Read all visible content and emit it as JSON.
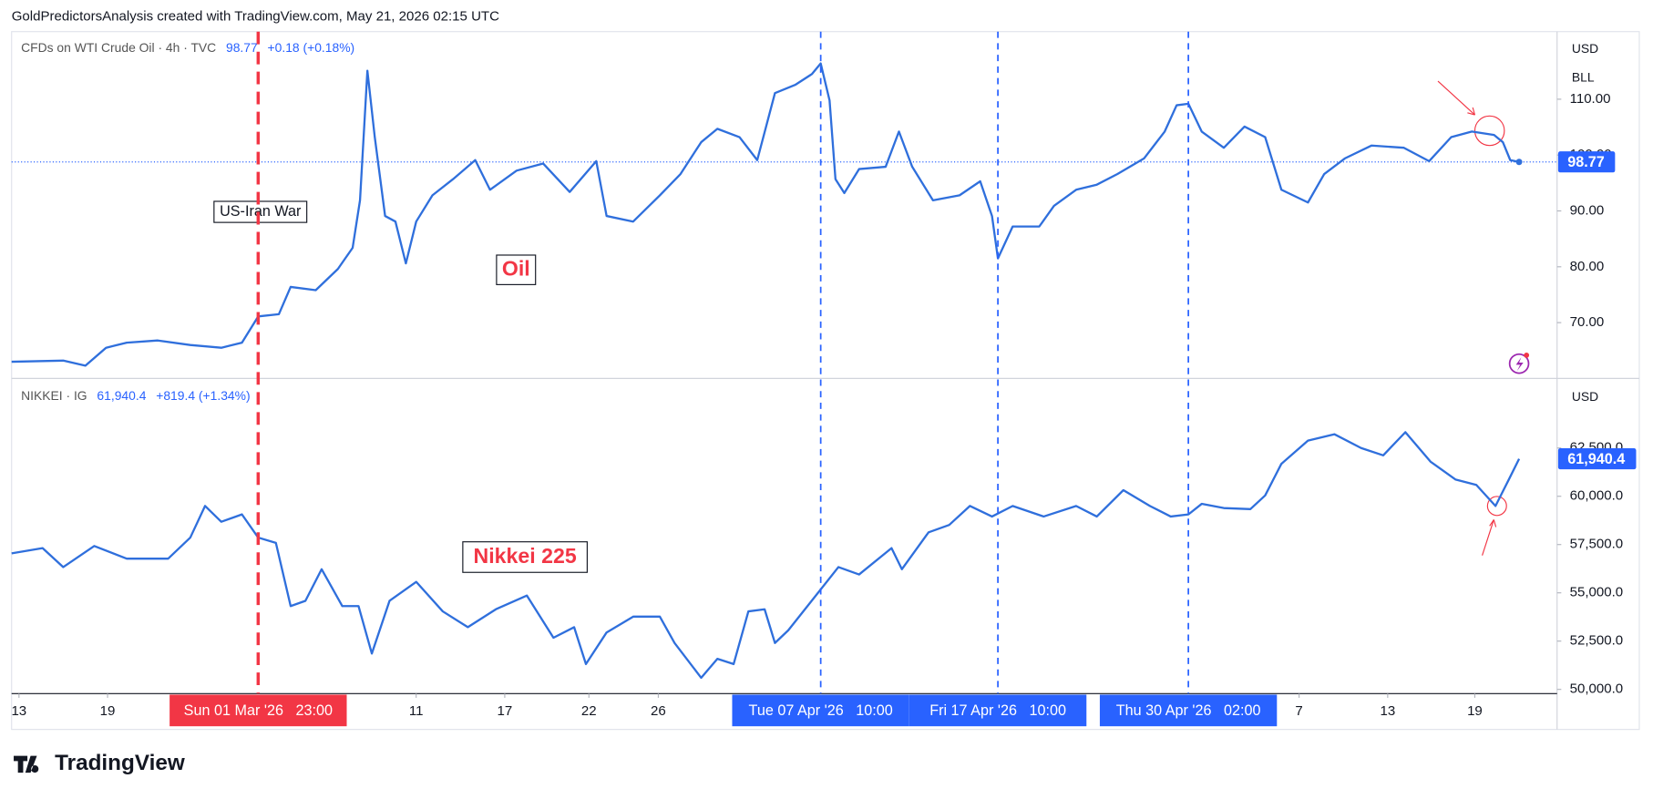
{
  "header": {
    "attribution": "GoldPredictorsAnalysis created with TradingView.com, May 21, 2026 02:15 UTC",
    "logo": "TradingView"
  },
  "chart_data": [
    {
      "type": "line",
      "title": "CFDs on WTI Crude Oil · 4h · TVC",
      "last_value": 98.77,
      "change": "+0.18 (+0.18%)",
      "currency": [
        "USD",
        "BLL"
      ],
      "annotations": [
        "US-Iran War",
        "Oil"
      ],
      "color": "#2f6fdc",
      "price_line": true,
      "xlim": [
        0,
        104.6
      ],
      "ylim": [
        60.2,
        122.1
      ],
      "yticks": [
        {
          "value": 70,
          "label": "70.00"
        },
        {
          "value": 80,
          "label": "80.00"
        },
        {
          "value": 90,
          "label": "90.00"
        },
        {
          "value": 100,
          "label": "100.00"
        },
        {
          "value": 110,
          "label": "110.00"
        }
      ],
      "x": [
        0,
        3.5,
        5.0,
        6.4,
        7.8,
        9.9,
        12.1,
        14.2,
        15.6,
        16.7,
        18.1,
        18.9,
        20.6,
        22.1,
        23.1,
        23.6,
        24.1,
        24.6,
        25.3,
        26.0,
        26.7,
        27.4,
        28.5,
        29.9,
        31.4,
        32.4,
        34.2,
        36.0,
        37.8,
        39.6,
        40.3,
        42.1,
        43.9,
        45.3,
        46.7,
        47.8,
        49.3,
        50.5,
        51.7,
        53.1,
        54.2,
        54.8,
        55.4,
        55.8,
        56.4,
        57.4,
        59.2,
        60.1,
        61.0,
        62.4,
        64.2,
        65.6,
        66.4,
        66.8,
        67.8,
        69.6,
        70.6,
        72.1,
        73.5,
        74.9,
        76.7,
        78.1,
        78.9,
        79.7,
        80.6,
        82.1,
        83.5,
        84.9,
        86.0,
        87.8,
        88.9,
        90.3,
        92.1,
        94.3,
        96.0,
        97.5,
        98.9,
        100.4,
        101.0,
        101.5,
        102.1
      ],
      "values": [
        63.0,
        63.2,
        62.3,
        65.5,
        66.4,
        66.8,
        66.0,
        65.5,
        66.4,
        71.1,
        71.5,
        76.4,
        75.8,
        79.6,
        83.4,
        91.9,
        115.1,
        103.2,
        89.1,
        88.1,
        80.6,
        88.1,
        92.8,
        95.7,
        99.1,
        93.8,
        97.2,
        98.5,
        93.4,
        98.9,
        89.1,
        88.1,
        92.8,
        96.6,
        102.3,
        104.7,
        103.2,
        99.1,
        111.1,
        112.6,
        114.5,
        116.4,
        109.8,
        95.7,
        93.2,
        97.5,
        97.9,
        104.2,
        97.9,
        91.9,
        92.8,
        95.3,
        89.1,
        81.5,
        87.2,
        87.2,
        90.9,
        93.8,
        94.7,
        96.6,
        99.4,
        104.2,
        108.9,
        109.2,
        104.2,
        101.3,
        105.1,
        103.2,
        93.8,
        91.5,
        96.6,
        99.4,
        101.7,
        101.3,
        98.9,
        103.2,
        104.2,
        103.6,
        102.3,
        99.1,
        98.77
      ]
    },
    {
      "type": "line",
      "title": "NIKKEI · IG",
      "last_value": {
        "value": 61940.4,
        "label": "61,940.4"
      },
      "change": "+819.4 (+1.34%)",
      "currency": [
        "USD"
      ],
      "annotations": [
        "Nikkei 225"
      ],
      "color": "#2f6fdc",
      "xlim": [
        0,
        104.6
      ],
      "ylim": [
        49782,
        66048
      ],
      "yticks": [
        {
          "value": 50000,
          "label": "50,000.0"
        },
        {
          "value": 52500,
          "label": "52,500.0"
        },
        {
          "value": 55000,
          "label": "55,000.0"
        },
        {
          "value": 57500,
          "label": "57,500.0"
        },
        {
          "value": 60000,
          "label": "60,000.0"
        },
        {
          "value": 62500,
          "label": "62,500.0"
        }
      ],
      "xticks": [
        {
          "value": 0.5,
          "label": "13"
        },
        {
          "value": 6.5,
          "label": "19"
        },
        {
          "value": 27.4,
          "label": "11"
        },
        {
          "value": 33.4,
          "label": "17"
        },
        {
          "value": 39.1,
          "label": "22"
        },
        {
          "value": 43.8,
          "label": "26"
        },
        {
          "value": 87.2,
          "label": "7"
        },
        {
          "value": 93.2,
          "label": "13"
        },
        {
          "value": 99.1,
          "label": "19"
        }
      ],
      "markers": [
        {
          "x": 16.7,
          "label": "Sun 01 Mar '26   23:00",
          "color": "#f23645"
        },
        {
          "x": 54.8,
          "label": "Tue 07 Apr '26   10:00",
          "color": "#2962ff"
        },
        {
          "x": 66.8,
          "label": "Fri 17 Apr '26   10:00",
          "color": "#2962ff"
        },
        {
          "x": 79.7,
          "label": "Thu 30 Apr '26   02:00",
          "color": "#2962ff"
        }
      ],
      "x": [
        0,
        2.1,
        3.5,
        5.6,
        7.8,
        10.6,
        12.1,
        13.1,
        14.2,
        15.6,
        16.7,
        17.9,
        18.9,
        19.9,
        21.0,
        22.4,
        23.5,
        24.4,
        25.6,
        27.4,
        29.2,
        30.9,
        32.8,
        34.9,
        36.7,
        38.1,
        38.9,
        40.3,
        42.1,
        43.9,
        44.9,
        46.7,
        47.8,
        48.9,
        49.9,
        51.0,
        51.7,
        52.6,
        56.0,
        57.4,
        59.6,
        60.3,
        62.1,
        63.5,
        64.9,
        66.4,
        67.8,
        69.9,
        72.1,
        73.5,
        75.3,
        77.1,
        78.5,
        79.7,
        80.6,
        82.1,
        83.9,
        84.9,
        86.0,
        87.8,
        89.6,
        91.4,
        92.9,
        94.4,
        96.1,
        97.8,
        99.2,
        100.5,
        101.4,
        102.1
      ],
      "values": [
        57041,
        57314,
        56332,
        57424,
        56769,
        56769,
        57860,
        59498,
        58679,
        59061,
        57860,
        57587,
        54312,
        54585,
        56223,
        54312,
        54312,
        51856,
        54585,
        55568,
        54039,
        53221,
        54149,
        54858,
        52675,
        53221,
        51310,
        52948,
        53766,
        53766,
        52402,
        50600,
        51583,
        51310,
        54039,
        54149,
        52402,
        53057,
        56332,
        55950,
        57314,
        56223,
        58133,
        58515,
        59498,
        58952,
        59498,
        58952,
        59498,
        58952,
        60317,
        59498,
        58952,
        59061,
        59607,
        59389,
        59334,
        60044,
        61681,
        62882,
        63210,
        62500,
        62118,
        63319,
        61790,
        60862,
        60590,
        59498,
        60862,
        61940.4
      ]
    }
  ]
}
